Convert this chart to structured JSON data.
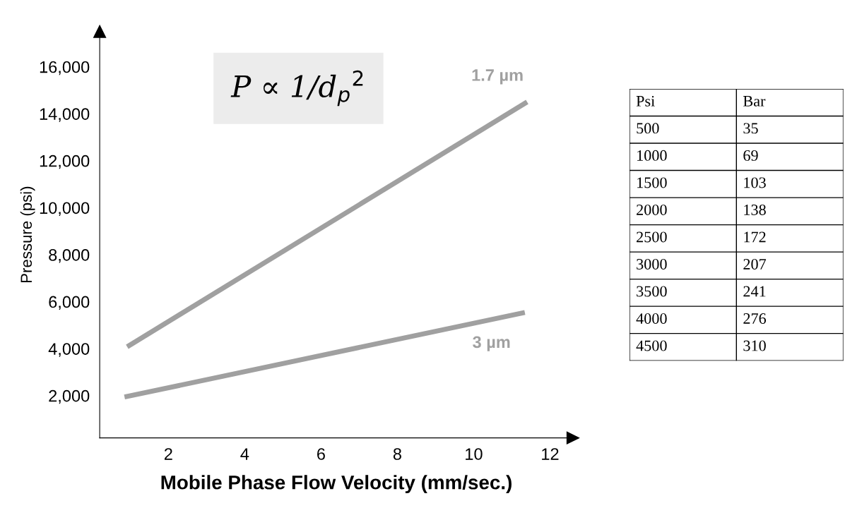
{
  "chart_data": {
    "type": "line",
    "xlabel": "Mobile Phase Flow Velocity (mm/sec.)",
    "ylabel": "Pressure (psi)",
    "xlim": [
      0.2,
      12.6
    ],
    "ylim": [
      200,
      17500
    ],
    "xticks": [
      2,
      4,
      6,
      8,
      10,
      12
    ],
    "yticks": [
      {
        "value": 2000,
        "label": "2,000"
      },
      {
        "value": 4000,
        "label": "4,000"
      },
      {
        "value": 6000,
        "label": "6,000"
      },
      {
        "value": 8000,
        "label": "8,000"
      },
      {
        "value": 10000,
        "label": "10,000"
      },
      {
        "value": 12000,
        "label": "12,000"
      },
      {
        "value": 14000,
        "label": "14,000"
      },
      {
        "value": 16000,
        "label": "16,000"
      }
    ],
    "grid": false,
    "marker": "none",
    "line_style": "solid",
    "annotations": [
      "P ∝ 1/d$_{p}$$^{2}$",
      "Psi",
      "Bar",
      "500",
      "35",
      "1000",
      "69",
      "1500",
      "103",
      "2000",
      "138",
      "2500",
      "172",
      "3000",
      "207",
      "3500",
      "241",
      "4000",
      "276",
      "4500",
      "310"
    ],
    "series": [
      {
        "name": "1.7 µm",
        "color": "#a0a0a0",
        "x": [
          0.92,
          11.4
        ],
        "values": [
          4080,
          14500
        ]
      },
      {
        "name": "3 µm",
        "color": "#a0a0a0",
        "x": [
          0.85,
          11.34
        ],
        "values": [
          1940,
          5540
        ]
      }
    ]
  }
}
